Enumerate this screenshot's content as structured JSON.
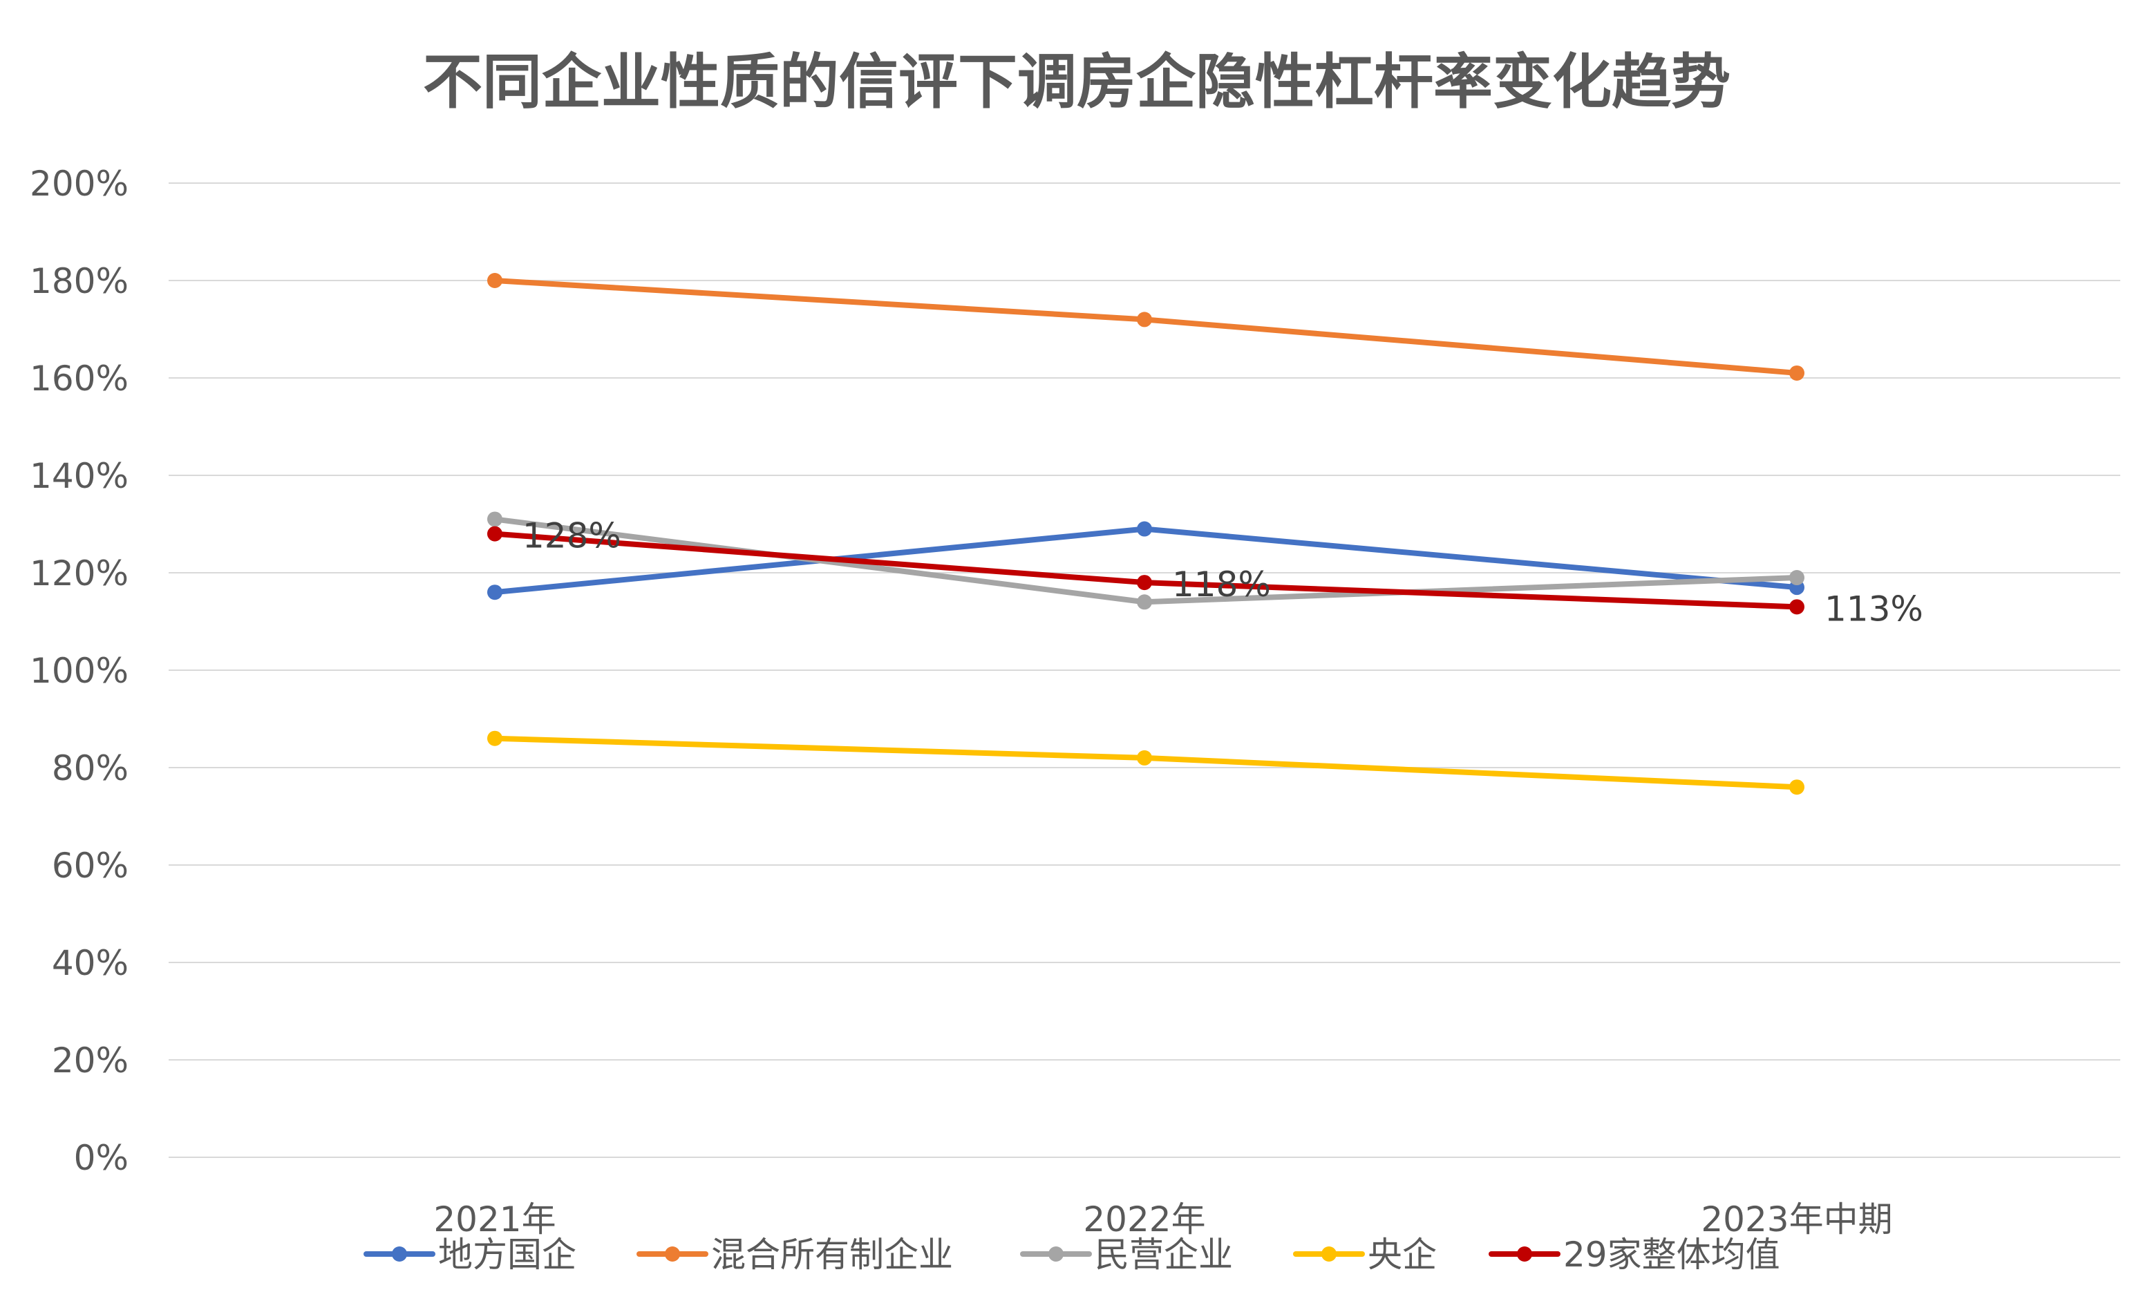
{
  "chart_data": {
    "type": "line",
    "title": "不同企业性质的信评下调房企隐性杠杆率变化趋势",
    "categories": [
      "2021年",
      "2022年",
      "2023年中期"
    ],
    "y_ticks": [
      "0%",
      "20%",
      "40%",
      "60%",
      "80%",
      "100%",
      "120%",
      "140%",
      "160%",
      "180%",
      "200%"
    ],
    "ylim": [
      0,
      200
    ],
    "grid": true,
    "legend_position": "bottom",
    "series": [
      {
        "name": "地方国企",
        "values": [
          116,
          129,
          117
        ],
        "color": "#4472C4"
      },
      {
        "name": "混合所有制企业",
        "values": [
          180,
          172,
          161
        ],
        "color": "#ED7D31"
      },
      {
        "name": "民营企业",
        "values": [
          131,
          114,
          119
        ],
        "color": "#A5A5A5"
      },
      {
        "name": "央企",
        "values": [
          86,
          82,
          76
        ],
        "color": "#FFC000"
      },
      {
        "name": "29家整体均值",
        "values": [
          128,
          118,
          113
        ],
        "color": "#C00000"
      }
    ],
    "data_labels": {
      "series": "29家整体均值",
      "texts": [
        "128%",
        "118%",
        "113%"
      ]
    }
  }
}
